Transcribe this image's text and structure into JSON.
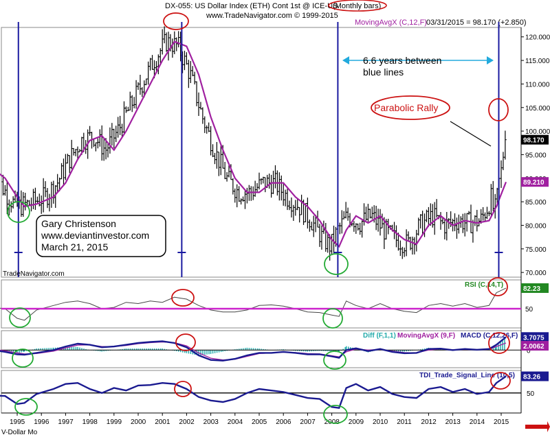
{
  "header": {
    "line1": "DX-055:  US Dollar Index (ETH) Cont 1st @ ICE-US ",
    "line1_circled": "(Monthly bars)",
    "line2": "www.TradeNavigator.com © 1999-2015",
    "ma_label": "MovingAvgX (C,12,F)",
    "price_info": "03/31/2015 = 98.170 (+2.850)"
  },
  "watermark": "TradeNavigator.com",
  "footer_label": "V-Dollar Mo",
  "annotations": {
    "gap_line1": "6.6 years between",
    "gap_line2": "blue lines",
    "parabolic": "Parabolic Rally",
    "author_line1": "Gary Christenson",
    "author_line2": "www.deviantinvestor.com",
    "author_line3": "March 21, 2015"
  },
  "colors": {
    "bars": "#000000",
    "ma": "#a020a0",
    "vlines": "#1a1aa0",
    "circle_red": "#cc1111",
    "circle_green": "#22aa33",
    "rsi_line": "#444444",
    "rsi_level": "#cc22cc",
    "macd": "#1a1a90",
    "signal": "#a020a0",
    "diff": "#22aaaa",
    "tdi": "#1a1a90",
    "arrow": "#22aadd",
    "last_box": "#000000",
    "ma_box": "#a020a0",
    "rsi_box": "#228822",
    "macd_box": "#1a1a90",
    "tdi_box": "#1a1a90"
  },
  "chart_data": [
    {
      "type": "ohlc",
      "title": "US Dollar Index (ETH) Cont 1st @ ICE-US (Monthly bars)",
      "x": [
        "1995",
        "1996",
        "1997",
        "1998",
        "1999",
        "2000",
        "2001",
        "2002",
        "2003",
        "2004",
        "2005",
        "2006",
        "2007",
        "2008",
        "2009",
        "2010",
        "2011",
        "2012",
        "2013",
        "2014",
        "2015"
      ],
      "yticks": [
        70,
        75,
        80,
        85,
        90,
        95,
        100,
        105,
        110,
        115,
        120
      ],
      "ylim": [
        69,
        122
      ],
      "last_price": "98.170",
      "ma_value": "89.210",
      "series": [
        {
          "name": "MovingAvgX (C,12,F)",
          "x": [
            1994.0,
            1994.5,
            1995.0,
            1995.3,
            1995.8,
            1996.5,
            1997.0,
            1997.5,
            1998.0,
            1998.5,
            1999.0,
            1999.5,
            2000.0,
            2000.5,
            2001.0,
            2001.5,
            2002.0,
            2002.5,
            2003.0,
            2003.5,
            2004.0,
            2004.5,
            2005.0,
            2005.5,
            2006.0,
            2006.5,
            2007.0,
            2007.5,
            2008.0,
            2008.3,
            2008.6,
            2009.0,
            2009.5,
            2010.0,
            2010.5,
            2011.0,
            2011.5,
            2012.0,
            2012.5,
            2013.0,
            2013.5,
            2014.0,
            2014.5,
            2014.8,
            2015.2
          ],
          "values": [
            92,
            90,
            86,
            84,
            84.5,
            86,
            89,
            94,
            98,
            99,
            96,
            100,
            105,
            110,
            115,
            119,
            118,
            112,
            103,
            96,
            90,
            87,
            87,
            89,
            89,
            86,
            84,
            81,
            77,
            75.5,
            79,
            82,
            80.5,
            82,
            79,
            77,
            76,
            80,
            82,
            80,
            81,
            80.5,
            81,
            84,
            89.2
          ]
        }
      ]
    },
    {
      "type": "line",
      "title": "RSI (C,14,T)",
      "yticks": [
        50
      ],
      "ylim": [
        20,
        95
      ],
      "level": 50,
      "last_value": "82.23",
      "x": [
        1994.0,
        1994.5,
        1995.0,
        1995.3,
        1995.8,
        1996.5,
        1997.0,
        1997.5,
        1998.0,
        1998.5,
        1999.0,
        1999.5,
        2000.0,
        2000.5,
        2001.0,
        2001.5,
        2002.0,
        2002.5,
        2003.0,
        2003.5,
        2004.0,
        2004.5,
        2005.0,
        2005.5,
        2006.0,
        2006.5,
        2007.0,
        2007.5,
        2008.0,
        2008.3,
        2008.6,
        2009.0,
        2009.5,
        2010.0,
        2010.5,
        2011.0,
        2011.5,
        2012.0,
        2012.5,
        2013.0,
        2013.5,
        2014.0,
        2014.5,
        2014.8,
        2015.2
      ],
      "values": [
        52,
        50,
        35,
        32,
        48,
        55,
        60,
        62,
        58,
        50,
        52,
        60,
        58,
        62,
        60,
        68,
        65,
        55,
        48,
        45,
        45,
        48,
        55,
        56,
        54,
        50,
        45,
        44,
        40,
        38,
        62,
        55,
        50,
        58,
        50,
        46,
        44,
        55,
        58,
        54,
        58,
        52,
        55,
        75,
        82.2
      ]
    },
    {
      "type": "line",
      "title": "MACD (C,12,26,F)",
      "legend": [
        "Diff (F,1,1)",
        "MovingAvgX (9,F)",
        "MACD (C,12,26,F)"
      ],
      "ylim": [
        -5,
        5.5
      ],
      "yticks": [
        0
      ],
      "last_macd": "3.7075",
      "last_signal": "2.0062",
      "x": [
        1994.0,
        1994.5,
        1995.0,
        1995.3,
        1995.8,
        1996.5,
        1997.0,
        1997.5,
        1998.0,
        1998.5,
        1999.0,
        1999.5,
        2000.0,
        2000.5,
        2001.0,
        2001.5,
        2002.0,
        2002.5,
        2003.0,
        2003.5,
        2004.0,
        2004.5,
        2005.0,
        2005.5,
        2006.0,
        2006.5,
        2007.0,
        2007.5,
        2008.0,
        2008.3,
        2008.6,
        2009.0,
        2009.5,
        2010.0,
        2010.5,
        2011.0,
        2011.5,
        2012.0,
        2012.5,
        2013.0,
        2013.5,
        2014.0,
        2014.5,
        2014.8,
        2015.2
      ],
      "series": [
        {
          "name": "MACD (C,12,26,F)",
          "values": [
            0,
            -0.5,
            -1.2,
            -1.3,
            -0.8,
            0,
            1,
            1.8,
            1.5,
            0.8,
            1.0,
            1.5,
            2.0,
            2.3,
            2.5,
            2.0,
            0.8,
            -1.5,
            -2.8,
            -3.0,
            -2.5,
            -1.5,
            -0.8,
            -0.8,
            -0.5,
            -0.8,
            -1.2,
            -1.2,
            -1.8,
            -2.2,
            0,
            0.5,
            -0.3,
            0.3,
            -0.5,
            -0.9,
            -0.8,
            0.3,
            0.4,
            0,
            0.3,
            0.1,
            0.3,
            1.5,
            3.7
          ]
        },
        {
          "name": "MovingAvgX (9,F)",
          "values": [
            0.2,
            -0.2,
            -0.8,
            -1.1,
            -1.0,
            -0.3,
            0.6,
            1.4,
            1.5,
            1.0,
            1.0,
            1.3,
            1.8,
            2.1,
            2.3,
            2.1,
            1.2,
            -0.8,
            -2.3,
            -2.8,
            -2.6,
            -1.8,
            -1.0,
            -0.8,
            -0.6,
            -0.7,
            -1.0,
            -1.1,
            -1.6,
            -1.9,
            -0.5,
            0.3,
            0,
            0.2,
            -0.3,
            -0.7,
            -0.8,
            0,
            0.3,
            0.1,
            0.2,
            0.1,
            0.2,
            1.0,
            2.0
          ]
        }
      ]
    },
    {
      "type": "line",
      "title": "TDI_Trade_Signal_Line (10,5)",
      "yticks": [
        50
      ],
      "ylim": [
        10,
        95
      ],
      "level": 50,
      "last_value": "83.26",
      "x": [
        1994.0,
        1994.5,
        1995.0,
        1995.3,
        1995.8,
        1996.5,
        1997.0,
        1997.5,
        1998.0,
        1998.5,
        1999.0,
        1999.5,
        2000.0,
        2000.5,
        2001.0,
        2001.5,
        2002.0,
        2002.5,
        2003.0,
        2003.5,
        2004.0,
        2004.5,
        2005.0,
        2005.5,
        2006.0,
        2006.5,
        2007.0,
        2007.5,
        2008.0,
        2008.3,
        2008.6,
        2009.0,
        2009.5,
        2010.0,
        2010.5,
        2011.0,
        2011.5,
        2012.0,
        2012.5,
        2013.0,
        2013.5,
        2014.0,
        2014.5,
        2014.8,
        2015.2
      ],
      "values": [
        45,
        44,
        28,
        30,
        48,
        58,
        68,
        70,
        58,
        50,
        60,
        55,
        65,
        66,
        70,
        68,
        58,
        42,
        35,
        32,
        38,
        50,
        58,
        55,
        52,
        46,
        40,
        38,
        22,
        20,
        60,
        68,
        55,
        62,
        48,
        42,
        40,
        58,
        62,
        52,
        58,
        48,
        52,
        70,
        83.3
      ]
    }
  ]
}
